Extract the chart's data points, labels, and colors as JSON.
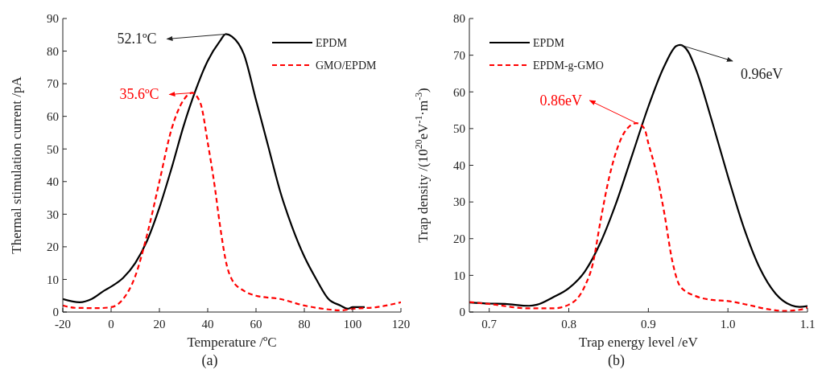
{
  "chart_data": [
    {
      "type": "line",
      "title": "(a)",
      "xlabel": "Temperature /ºC",
      "ylabel": "Thermal stimulation current /pA",
      "xlim": [
        -20,
        120
      ],
      "xticks": [
        -20,
        0,
        20,
        40,
        60,
        80,
        100,
        120
      ],
      "ylim": [
        0,
        90
      ],
      "yticks": [
        0,
        10,
        20,
        30,
        40,
        50,
        60,
        70,
        80,
        90
      ],
      "legend": "top right",
      "series": [
        {
          "name": "EPDM",
          "color": "#000000",
          "line_style": "solid",
          "x": [
            -20,
            -13,
            -8,
            -3,
            0,
            5,
            10,
            15,
            20,
            25,
            30,
            35,
            40,
            45,
            47.5,
            50,
            55,
            60,
            65,
            70,
            75,
            80,
            85,
            90,
            95,
            98,
            100,
            105
          ],
          "values": [
            4,
            3,
            4,
            6.5,
            7.8,
            10.5,
            15,
            22,
            32,
            44,
            57,
            68,
            77,
            83,
            85.2,
            84.5,
            79,
            65,
            51,
            37,
            26,
            17,
            10,
            4,
            2,
            1,
            1.5,
            1.5
          ]
        },
        {
          "name": "GMO/EPDM",
          "color": "#ff0000",
          "line_style": "dashed",
          "x": [
            -20,
            -15,
            -5,
            0,
            5,
            10,
            15,
            20,
            25,
            30,
            33.5,
            37,
            40,
            43,
            45,
            48,
            50,
            55,
            60,
            70,
            80,
            90,
            95,
            100,
            110,
            120
          ],
          "values": [
            2,
            1.3,
            1.2,
            1.5,
            4,
            11,
            24,
            40,
            56,
            65,
            67.2,
            64,
            52,
            38,
            27,
            14,
            10,
            6.5,
            5,
            4,
            2,
            0.8,
            0.5,
            1,
            1.5,
            3
          ]
        }
      ],
      "annotations": [
        {
          "text": "52.1ºC",
          "x": 47.5,
          "y": 85.2
        },
        {
          "text": "35.6ºC",
          "x": 33.5,
          "y": 67.2
        }
      ]
    },
    {
      "type": "line",
      "title": "(b)",
      "xlabel": "Trap energy level /eV",
      "ylabel": "Trap density /(10$^{20}$eV$^{-1}$·m$^{-3}$)",
      "xlim": [
        0.675,
        1.1
      ],
      "xticks": [
        0.7,
        0.8,
        0.9,
        {
          "value": 1.0,
          "label": "1.0"
        },
        1.1
      ],
      "ylim": [
        0,
        80
      ],
      "yticks": [
        0,
        10,
        20,
        30,
        40,
        50,
        60,
        70,
        80
      ],
      "legend": "top left",
      "series": [
        {
          "name": "EPDM",
          "color": "#000000",
          "line_style": "solid",
          "x": [
            0.675,
            0.7,
            0.72,
            0.75,
            0.76,
            0.78,
            0.8,
            0.82,
            0.84,
            0.86,
            0.88,
            0.9,
            0.92,
            0.935,
            0.94,
            0.95,
            0.96,
            0.98,
            1.0,
            1.02,
            1.04,
            1.06,
            1.08,
            1.09,
            1.1
          ],
          "values": [
            2.6,
            2.3,
            2.2,
            1.7,
            2,
            4,
            6.5,
            11,
            19,
            30,
            43,
            56,
            67,
            72.5,
            72.8,
            71,
            66,
            52,
            37,
            23,
            12,
            5,
            1.8,
            1.4,
            1.6
          ]
        },
        {
          "name": "EPDM-g-GMO",
          "color": "#ff0000",
          "line_style": "dashed",
          "x": [
            0.675,
            0.7,
            0.75,
            0.78,
            0.8,
            0.82,
            0.83,
            0.84,
            0.85,
            0.86,
            0.87,
            0.885,
            0.895,
            0.9,
            0.91,
            0.92,
            0.93,
            0.94,
            0.96,
            0.98,
            1.0,
            1.02,
            1.05,
            1.07,
            1.09,
            1.1
          ],
          "values": [
            2.7,
            2.2,
            1,
            1,
            2,
            7,
            13,
            25,
            36,
            44,
            49,
            51.5,
            50,
            46,
            38,
            27,
            14,
            7,
            4.3,
            3.3,
            3,
            2.2,
            0.8,
            0.3,
            0.6,
            1.2
          ]
        }
      ],
      "annotations": [
        {
          "text": "0.96eV",
          "x": 0.94,
          "y": 72.8
        },
        {
          "text": "0.86eV",
          "x": 0.885,
          "y": 51.5
        }
      ]
    }
  ]
}
